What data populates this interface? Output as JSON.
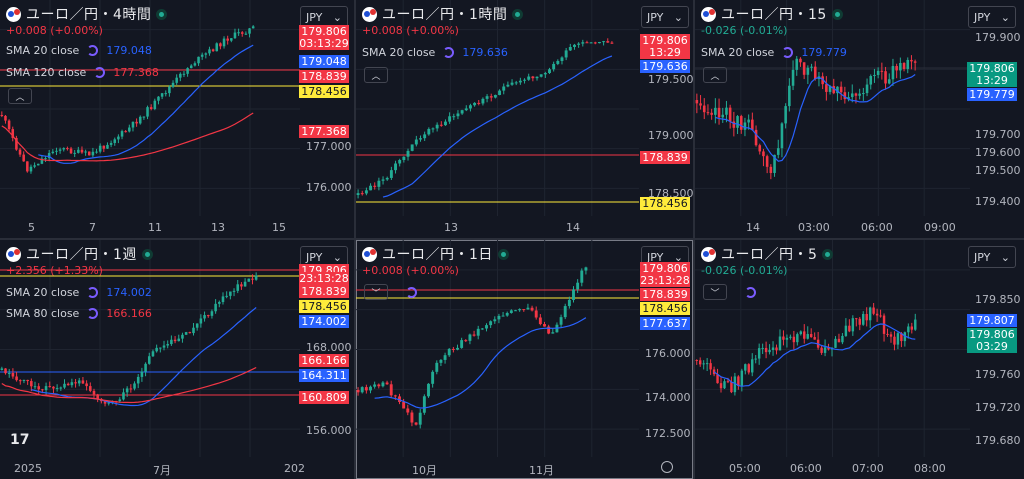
{
  "colors": {
    "up": "#22ab94",
    "down": "#f23645",
    "sma_short": "#2962ff",
    "sma_long": "#f23645",
    "yellow_line": "#ffeb3b",
    "bg": "#131722",
    "grid": "#1f2430"
  },
  "icons": {
    "symbol": "yen-euro-flag-icon",
    "live": "live-dot-icon",
    "spinner": "loading-spinner-icon",
    "collapse": "chevron-up-icon",
    "dropdown": "chevron-down-icon",
    "settings": "gear-icon",
    "logo": "tradingview-logo"
  },
  "panes": [
    {
      "title": "ユーロ／円・4時間",
      "change": "+0.008 (+0.00%)",
      "change_dir": "up",
      "currency": "JPY",
      "indicators": [
        {
          "label": "SMA 20 close",
          "value": "179.048",
          "color": "#2962ff"
        },
        {
          "label": "SMA 120 close",
          "value": "177.368",
          "color": "#f23645"
        }
      ],
      "y_ticks": [
        "177.000",
        "176.000"
      ],
      "x_ticks": [
        "5",
        "7",
        "11",
        "13",
        "15"
      ],
      "price_tags": [
        {
          "text": "179.806",
          "color": "red"
        },
        {
          "text": "03:13:29",
          "color": "red"
        },
        {
          "text": "179.048",
          "color": "blue"
        },
        {
          "text": "178.839",
          "color": "red"
        },
        {
          "text": "178.456",
          "color": "yellow"
        },
        {
          "text": "177.368",
          "color": "red"
        }
      ],
      "collapse": "up"
    },
    {
      "title": "ユーロ／円・1時間",
      "change": "+0.008 (+0.00%)",
      "change_dir": "up",
      "currency": "JPY",
      "indicators": [
        {
          "label": "SMA 20 close",
          "value": "179.636",
          "color": "#2962ff"
        }
      ],
      "y_ticks": [
        "179.500",
        "179.000",
        "178.500"
      ],
      "x_ticks": [
        "13",
        "14"
      ],
      "price_tags": [
        {
          "text": "179.806",
          "color": "red"
        },
        {
          "text": "13:29",
          "color": "red"
        },
        {
          "text": "179.636",
          "color": "blue"
        },
        {
          "text": "178.839",
          "color": "red"
        },
        {
          "text": "178.456",
          "color": "yellow"
        }
      ],
      "collapse": "up"
    },
    {
      "title": "ユーロ／円・15",
      "change": "-0.026 (-0.01%)",
      "change_dir": "down",
      "currency": "JPY",
      "indicators": [
        {
          "label": "SMA 20 close",
          "value": "179.779",
          "color": "#2962ff"
        }
      ],
      "y_ticks": [
        "179.900",
        "179.700",
        "179.600",
        "179.500",
        "179.400"
      ],
      "x_ticks": [
        "14",
        "03:00",
        "06:00",
        "09:00"
      ],
      "price_tags": [
        {
          "text": "179.806",
          "color": "green"
        },
        {
          "text": "13:29",
          "color": "green"
        },
        {
          "text": "179.779",
          "color": "blue"
        }
      ],
      "collapse": "up"
    },
    {
      "title": "ユーロ／円・1週",
      "change": "+2.356 (+1.33%)",
      "change_dir": "up",
      "currency": "JPY",
      "indicators": [
        {
          "label": "SMA 20 close",
          "value": "174.002",
          "color": "#2962ff"
        },
        {
          "label": "SMA 80 close",
          "value": "166.166",
          "color": "#f23645"
        }
      ],
      "y_ticks": [
        "168.000",
        "156.000"
      ],
      "x_ticks": [
        "2025",
        "7月",
        "202"
      ],
      "price_tags": [
        {
          "text": "179.806",
          "color": "red"
        },
        {
          "text": "23:13:28",
          "color": "red"
        },
        {
          "text": "178.839",
          "color": "red"
        },
        {
          "text": "178.456",
          "color": "yellow"
        },
        {
          "text": "174.002",
          "color": "blue"
        },
        {
          "text": "166.166",
          "color": "red"
        },
        {
          "text": "164.311",
          "color": "blue"
        },
        {
          "text": "160.809",
          "color": "red"
        }
      ],
      "collapse": "none"
    },
    {
      "title": "ユーロ／円・1日",
      "change": "+0.008 (+0.00%)",
      "change_dir": "up",
      "currency": "JPY",
      "indicators": [],
      "y_ticks": [
        "176.000",
        "174.000",
        "172.500"
      ],
      "x_ticks": [
        "10月",
        "11月"
      ],
      "price_tags": [
        {
          "text": "179.806",
          "color": "red"
        },
        {
          "text": "23:13:28",
          "color": "red"
        },
        {
          "text": "178.839",
          "color": "red"
        },
        {
          "text": "178.456",
          "color": "yellow"
        },
        {
          "text": "177.637",
          "color": "blue"
        }
      ],
      "collapse": "down"
    },
    {
      "title": "ユーロ／円・5",
      "change": "-0.026 (-0.01%)",
      "change_dir": "down",
      "currency": "JPY",
      "indicators": [],
      "y_ticks": [
        "179.850",
        "179.760",
        "179.720",
        "179.680"
      ],
      "x_ticks": [
        "05:00",
        "06:00",
        "07:00",
        "08:00"
      ],
      "price_tags": [
        {
          "text": "179.807",
          "color": "blue"
        },
        {
          "text": "179.806",
          "color": "green"
        },
        {
          "text": "03:29",
          "color": "green"
        }
      ],
      "collapse": "down"
    }
  ]
}
